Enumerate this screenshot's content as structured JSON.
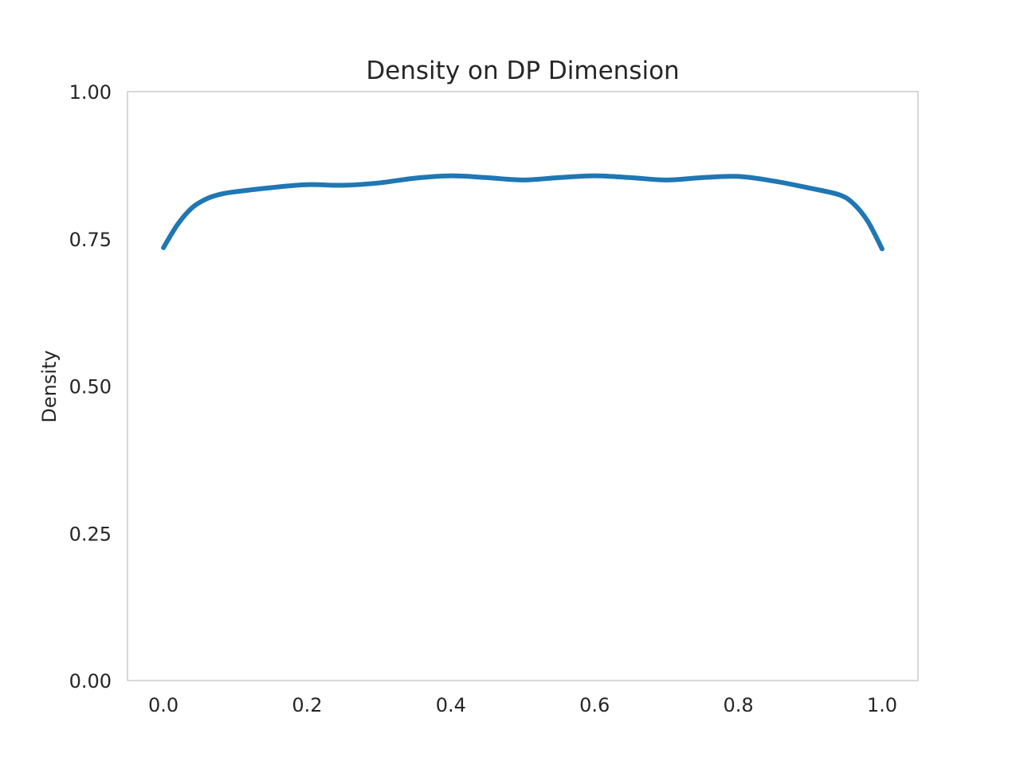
{
  "chart_data": {
    "type": "line",
    "title": "Density on DP Dimension",
    "xlabel": "",
    "ylabel": "Density",
    "xlim": [
      -0.05,
      1.05
    ],
    "ylim": [
      0.0,
      1.0
    ],
    "xticks": [
      0.0,
      0.2,
      0.4,
      0.6,
      0.8,
      1.0
    ],
    "xtick_labels": [
      "0.0",
      "0.2",
      "0.4",
      "0.6",
      "0.8",
      "1.0"
    ],
    "yticks": [
      0.0,
      0.25,
      0.5,
      0.75,
      1.0
    ],
    "ytick_labels": [
      "0.00",
      "0.25",
      "0.50",
      "0.75",
      "1.00"
    ],
    "grid": false,
    "series": [
      {
        "color": "#1f77b4",
        "x": [
          0.0,
          0.02,
          0.04,
          0.06,
          0.08,
          0.1,
          0.15,
          0.2,
          0.25,
          0.3,
          0.35,
          0.4,
          0.45,
          0.5,
          0.55,
          0.6,
          0.65,
          0.7,
          0.75,
          0.8,
          0.85,
          0.9,
          0.94,
          0.96,
          0.98,
          1.0
        ],
        "y": [
          0.735,
          0.775,
          0.803,
          0.818,
          0.826,
          0.83,
          0.837,
          0.842,
          0.841,
          0.845,
          0.853,
          0.857,
          0.854,
          0.85,
          0.854,
          0.857,
          0.854,
          0.85,
          0.854,
          0.856,
          0.848,
          0.836,
          0.825,
          0.81,
          0.78,
          0.733
        ]
      }
    ]
  }
}
